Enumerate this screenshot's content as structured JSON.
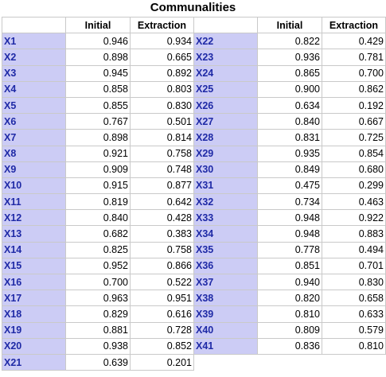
{
  "title": "Communalities",
  "headers": {
    "label": "",
    "initial": "Initial",
    "extraction": "Extraction"
  },
  "label_color": "#1f2aa6",
  "label_bg": "#ccccf5",
  "left": [
    {
      "label": "X1",
      "initial": "0.946",
      "extraction": "0.934"
    },
    {
      "label": "X2",
      "initial": "0.898",
      "extraction": "0.665"
    },
    {
      "label": "X3",
      "initial": "0.945",
      "extraction": "0.892"
    },
    {
      "label": "X4",
      "initial": "0.858",
      "extraction": "0.803"
    },
    {
      "label": "X5",
      "initial": "0.855",
      "extraction": "0.830"
    },
    {
      "label": "X6",
      "initial": "0.767",
      "extraction": "0.501"
    },
    {
      "label": "X7",
      "initial": "0.898",
      "extraction": "0.814"
    },
    {
      "label": "X8",
      "initial": "0.921",
      "extraction": "0.758"
    },
    {
      "label": "X9",
      "initial": "0.909",
      "extraction": "0.748"
    },
    {
      "label": "X10",
      "initial": "0.915",
      "extraction": "0.877"
    },
    {
      "label": "X11",
      "initial": "0.819",
      "extraction": "0.642"
    },
    {
      "label": "X12",
      "initial": "0.840",
      "extraction": "0.428"
    },
    {
      "label": "X13",
      "initial": "0.682",
      "extraction": "0.383"
    },
    {
      "label": "X14",
      "initial": "0.825",
      "extraction": "0.758"
    },
    {
      "label": "X15",
      "initial": "0.952",
      "extraction": "0.866"
    },
    {
      "label": "X16",
      "initial": "0.700",
      "extraction": "0.522"
    },
    {
      "label": "X17",
      "initial": "0.963",
      "extraction": "0.951"
    },
    {
      "label": "X18",
      "initial": "0.829",
      "extraction": "0.616"
    },
    {
      "label": "X19",
      "initial": "0.881",
      "extraction": "0.728"
    },
    {
      "label": "X20",
      "initial": "0.938",
      "extraction": "0.852"
    },
    {
      "label": "X21",
      "initial": "0.639",
      "extraction": "0.201"
    }
  ],
  "right": [
    {
      "label": "X22",
      "initial": "0.822",
      "extraction": "0.429"
    },
    {
      "label": "X23",
      "initial": "0.936",
      "extraction": "0.781"
    },
    {
      "label": "X24",
      "initial": "0.865",
      "extraction": "0.700"
    },
    {
      "label": "X25",
      "initial": "0.900",
      "extraction": "0.862"
    },
    {
      "label": "X26",
      "initial": "0.634",
      "extraction": "0.192"
    },
    {
      "label": "X27",
      "initial": "0.840",
      "extraction": "0.667"
    },
    {
      "label": "X28",
      "initial": "0.831",
      "extraction": "0.725"
    },
    {
      "label": "X29",
      "initial": "0.935",
      "extraction": "0.854"
    },
    {
      "label": "X30",
      "initial": "0.849",
      "extraction": "0.680"
    },
    {
      "label": "X31",
      "initial": "0.475",
      "extraction": "0.299"
    },
    {
      "label": "X32",
      "initial": "0.734",
      "extraction": "0.463"
    },
    {
      "label": "X33",
      "initial": "0.948",
      "extraction": "0.922"
    },
    {
      "label": "X34",
      "initial": "0.948",
      "extraction": "0.883"
    },
    {
      "label": "X35",
      "initial": "0.778",
      "extraction": "0.494"
    },
    {
      "label": "X36",
      "initial": "0.851",
      "extraction": "0.701"
    },
    {
      "label": "X37",
      "initial": "0.940",
      "extraction": "0.830"
    },
    {
      "label": "X38",
      "initial": "0.820",
      "extraction": "0.658"
    },
    {
      "label": "X39",
      "initial": "0.810",
      "extraction": "0.633"
    },
    {
      "label": "X40",
      "initial": "0.809",
      "extraction": "0.579"
    },
    {
      "label": "X41",
      "initial": "0.836",
      "extraction": "0.810"
    }
  ]
}
